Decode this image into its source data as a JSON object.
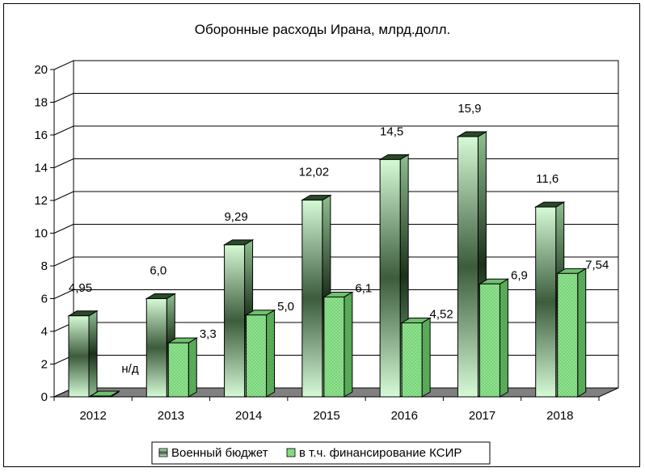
{
  "chart_data": {
    "type": "bar",
    "title": "Оборонные расходы Ирана, млрд.долл.",
    "xlabel": "",
    "ylabel": "",
    "categories": [
      "2012",
      "2013",
      "2014",
      "2015",
      "2016",
      "2017",
      "2018"
    ],
    "ylim": [
      0,
      20
    ],
    "yticks": [
      "0",
      "2",
      "4",
      "6",
      "8",
      "10",
      "12",
      "14",
      "16",
      "18",
      "20"
    ],
    "grid": true,
    "legend_position": "bottom",
    "series": [
      {
        "name": "Военный бюджет",
        "values": [
          4.95,
          6.0,
          9.29,
          12.02,
          14.5,
          15.9,
          11.6
        ],
        "labels": [
          "4,95",
          "6,0",
          "9,29",
          "12,02",
          "14,5",
          "15,9",
          "11,6"
        ]
      },
      {
        "name": "в т.ч. финансирование КСИР",
        "values": [
          null,
          3.3,
          5.0,
          6.1,
          4.52,
          6.9,
          7.54
        ],
        "labels": [
          "н/д",
          "3,3",
          "5,0",
          "6,1",
          "4,52",
          "6,9",
          "7,54"
        ]
      }
    ]
  },
  "colors": {
    "series1_light": "#b8f0b8",
    "series1_dark": "#1e3a1e",
    "series2_fill": "#90e090",
    "floor": "#808080"
  }
}
